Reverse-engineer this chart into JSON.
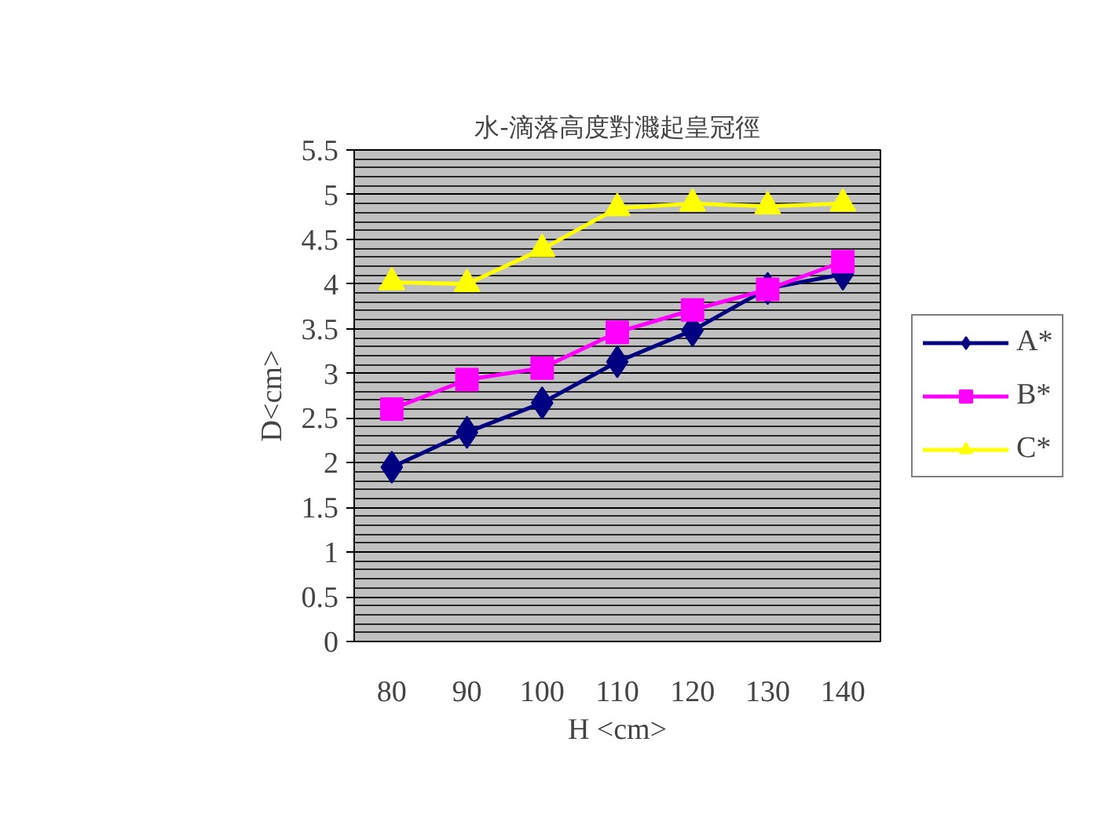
{
  "chart_data": {
    "type": "line",
    "title": "水-滴落高度對濺起皇冠徑",
    "xlabel": "H <cm>",
    "ylabel": "D<cm>",
    "categories": [
      "80",
      "90",
      "100",
      "110",
      "120",
      "130",
      "140"
    ],
    "series": [
      {
        "name": "A*",
        "color": "#000080",
        "marker": "diamond",
        "values": [
          1.95,
          2.34,
          2.67,
          3.13,
          3.48,
          3.95,
          4.11
        ]
      },
      {
        "name": "B*",
        "color": "#ff00ff",
        "marker": "square",
        "values": [
          2.6,
          2.93,
          3.06,
          3.46,
          3.71,
          3.94,
          4.25
        ]
      },
      {
        "name": "C*",
        "color": "#ffff00",
        "marker": "triangle",
        "values": [
          4.02,
          4.0,
          4.39,
          4.85,
          4.9,
          4.87,
          4.9
        ]
      }
    ],
    "ylim": [
      0,
      5.5
    ],
    "yticks": [
      0,
      0.5,
      1,
      1.5,
      2,
      2.5,
      3,
      3.5,
      4,
      4.5,
      5,
      5.5
    ],
    "grid": "y",
    "legend": "right",
    "line_style": "solid"
  }
}
